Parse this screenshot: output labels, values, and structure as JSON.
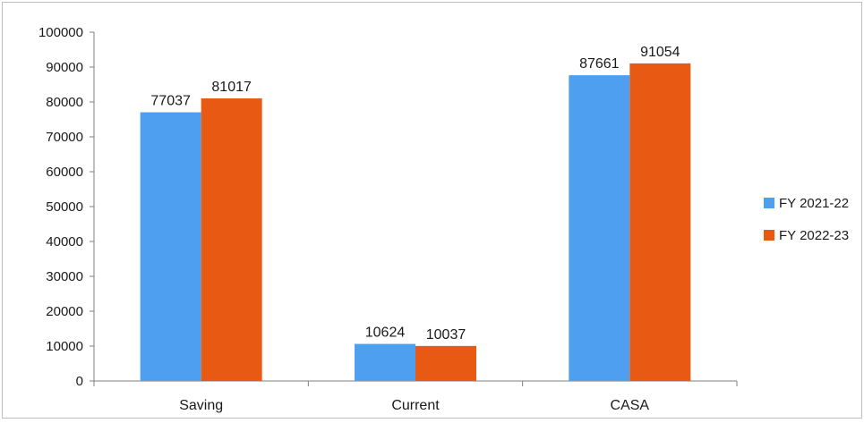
{
  "chart_data": {
    "type": "bar",
    "title": "",
    "xlabel": "",
    "ylabel": "",
    "categories": [
      "Saving",
      "Current",
      "CASA"
    ],
    "series": [
      {
        "name": "FY 2021-22",
        "color": "#4f9ff0",
        "values": [
          77037,
          10624,
          87661
        ]
      },
      {
        "name": "FY 2022-23",
        "color": "#e85a14",
        "values": [
          81017,
          10037,
          91054
        ]
      }
    ],
    "ylim": [
      0,
      100000
    ],
    "yticks": [
      0,
      10000,
      20000,
      30000,
      40000,
      50000,
      60000,
      70000,
      80000,
      90000,
      100000
    ],
    "grid": false,
    "legend_position": "right",
    "data_labels": true
  }
}
